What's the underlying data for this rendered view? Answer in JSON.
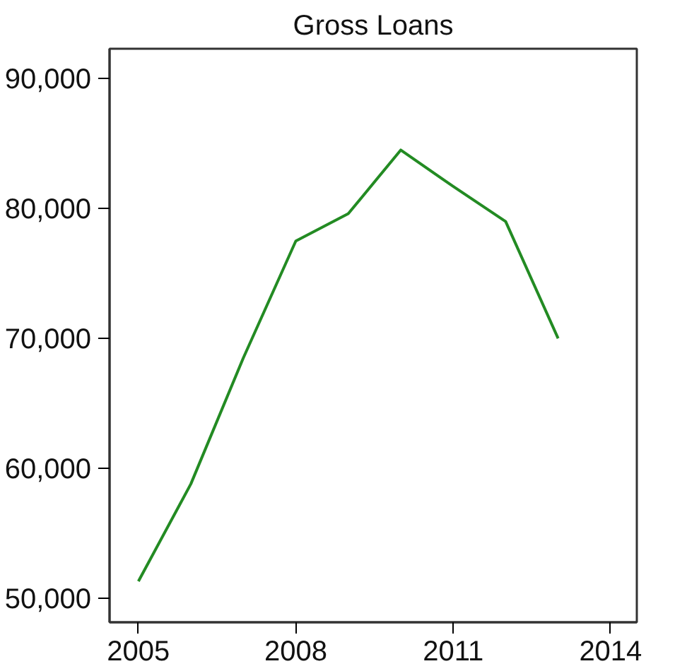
{
  "chart_data": {
    "type": "line",
    "title": "Gross Loans",
    "x": [
      2005,
      2006,
      2007,
      2008,
      2009,
      2010,
      2011,
      2012,
      2013
    ],
    "series": [
      {
        "color": "#238b23",
        "values": [
          51300,
          58800,
          68500,
          77500,
          79600,
          84500,
          81700,
          79000,
          70000
        ]
      }
    ],
    "xlim": [
      2004.45,
      2014.5
    ],
    "xticks": [
      2005,
      2008,
      2011,
      2014
    ],
    "ylim": [
      48150,
      92300
    ],
    "yticks": [
      {
        "value": 50000,
        "label": "50,000"
      },
      {
        "value": 60000,
        "label": "60,000"
      },
      {
        "value": 70000,
        "label": "70,000"
      },
      {
        "value": 80000,
        "label": "80,000"
      },
      {
        "value": 90000,
        "label": "90,000"
      }
    ],
    "grid": false,
    "marker": "none",
    "line_style": "solid"
  }
}
